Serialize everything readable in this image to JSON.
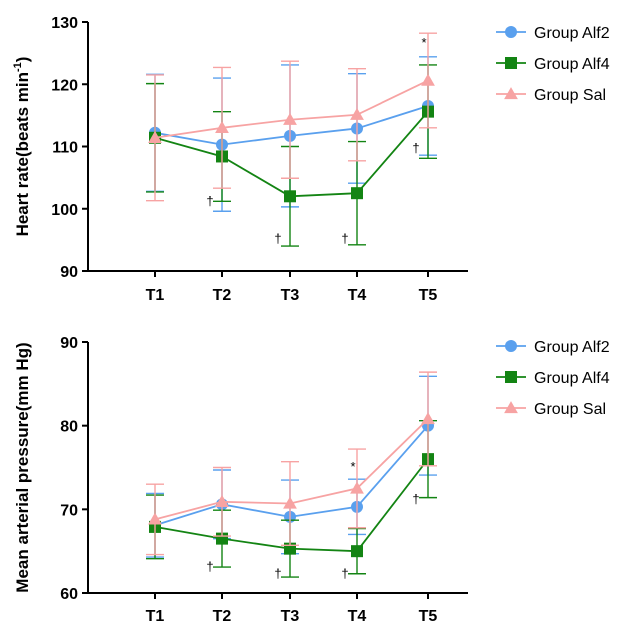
{
  "colors": {
    "alf2": "#5aa0ee",
    "alf4": "#138413",
    "sal": "#f7a3a3"
  },
  "chart_data": [
    {
      "type": "line",
      "ylabel": "Heart rate",
      "ylabel_unit": "(beats min",
      "ylabel_sup": "-1",
      "ylabel_close": ")",
      "ylim": [
        90,
        130
      ],
      "yticks": [
        90,
        100,
        110,
        120,
        130
      ],
      "categories": [
        "T1",
        "T2",
        "T3",
        "T4",
        "T5"
      ],
      "legend_position": "top-right",
      "series": [
        {
          "name": "Group Alf2",
          "marker": "circle",
          "values": [
            112.2,
            110.3,
            111.7,
            112.9,
            116.5
          ],
          "err": [
            9.4,
            10.7,
            11.4,
            8.8,
            7.9
          ]
        },
        {
          "name": "Group Alf4",
          "marker": "square",
          "values": [
            111.4,
            108.4,
            102.0,
            102.5,
            115.6
          ],
          "err": [
            8.7,
            7.2,
            8.0,
            8.3,
            7.5
          ]
        },
        {
          "name": "Group Sal",
          "marker": "triangle",
          "values": [
            111.4,
            113.0,
            114.3,
            115.1,
            120.6
          ],
          "err": [
            10.1,
            9.7,
            9.4,
            7.4,
            7.6
          ]
        }
      ],
      "annotations": [
        {
          "text": "†",
          "category": "T2",
          "y": 100.5
        },
        {
          "text": "†",
          "category": "T3",
          "y": 94.5
        },
        {
          "text": "†",
          "category": "T4",
          "y": 94.5
        },
        {
          "text": "†",
          "category": "T5",
          "y": 109.0
        },
        {
          "text": "*",
          "category": "T5",
          "y": 126.0
        }
      ]
    },
    {
      "type": "line",
      "ylabel": "Mean arterial pressure(mm Hg)",
      "ylim": [
        60,
        90
      ],
      "yticks": [
        60,
        70,
        80,
        90
      ],
      "categories": [
        "T1",
        "T2",
        "T3",
        "T4",
        "T5"
      ],
      "legend_position": "top-right",
      "series": [
        {
          "name": "Group Alf2",
          "marker": "circle",
          "values": [
            68.1,
            70.6,
            69.1,
            70.3,
            80.0
          ],
          "err": [
            3.8,
            4.1,
            4.4,
            3.3,
            5.9
          ]
        },
        {
          "name": "Group Alf4",
          "marker": "square",
          "values": [
            67.9,
            66.5,
            65.3,
            65.0,
            76.0
          ],
          "err": [
            3.8,
            3.4,
            3.4,
            2.7,
            4.6
          ]
        },
        {
          "name": "Group Sal",
          "marker": "triangle",
          "values": [
            68.8,
            70.9,
            70.7,
            72.5,
            80.8
          ],
          "err": [
            4.2,
            4.1,
            5.0,
            4.7,
            5.6
          ]
        }
      ],
      "annotations": [
        {
          "text": "†",
          "category": "T2",
          "y": 62.6
        },
        {
          "text": "†",
          "category": "T3",
          "y": 61.8
        },
        {
          "text": "†",
          "category": "T4",
          "y": 61.8
        },
        {
          "text": "†",
          "category": "T5",
          "y": 70.7
        },
        {
          "text": "*",
          "category": "T4",
          "y": 74.6
        }
      ]
    }
  ]
}
